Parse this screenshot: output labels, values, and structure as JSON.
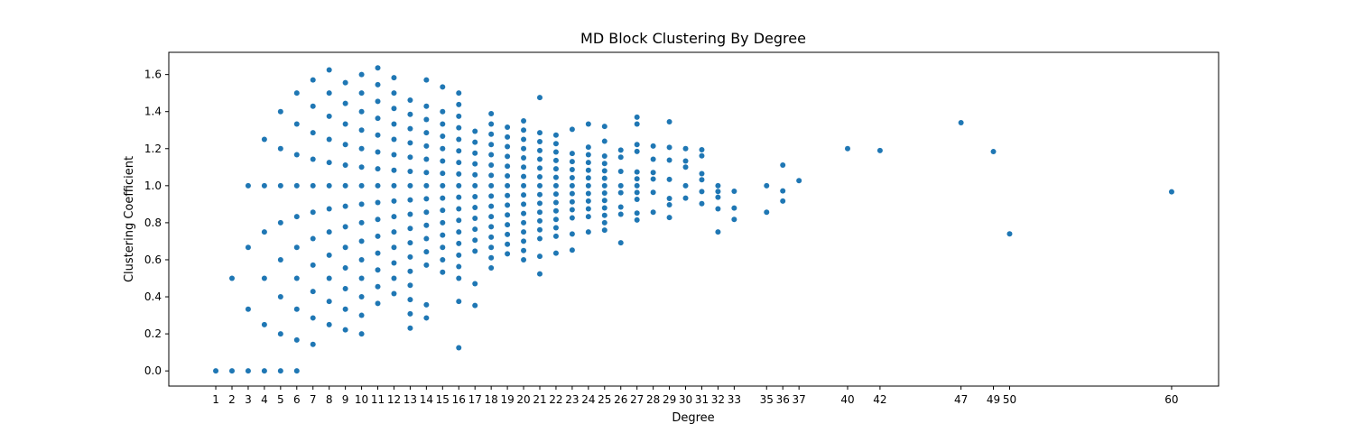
{
  "chart_data": {
    "type": "scatter",
    "title": "MD Block Clustering By Degree",
    "xlabel": "Degree",
    "ylabel": "Clustering Coefficient",
    "xlim": [
      -1.9,
      62.9
    ],
    "ylim": [
      -0.082,
      1.72
    ],
    "x_ticks": [
      1,
      2,
      3,
      4,
      5,
      6,
      7,
      8,
      9,
      10,
      11,
      12,
      13,
      14,
      15,
      16,
      17,
      18,
      19,
      20,
      21,
      22,
      23,
      24,
      25,
      26,
      27,
      28,
      29,
      30,
      31,
      32,
      33,
      35,
      36,
      37,
      40,
      42,
      47,
      49,
      50,
      60
    ],
    "x_tick_labels": [
      "1",
      "2",
      "3",
      "4",
      "5",
      "6",
      "7",
      "8",
      "9",
      "10",
      "11",
      "12",
      "13",
      "14",
      "15",
      "16",
      "17",
      "18",
      "19",
      "20",
      "21",
      "22",
      "23",
      "24",
      "25",
      "26",
      "27",
      "28",
      "29",
      "30",
      "31",
      "32",
      "33",
      "35",
      "36",
      "37",
      "40",
      "42",
      "47",
      "49",
      "50",
      "60"
    ],
    "y_ticks": [
      0.0,
      0.2,
      0.4,
      0.6,
      0.8,
      1.0,
      1.2,
      1.4,
      1.6
    ],
    "y_tick_labels": [
      "0.0",
      "0.2",
      "0.4",
      "0.6",
      "0.8",
      "1.0",
      "1.2",
      "1.4",
      "1.6"
    ],
    "grid": false,
    "legend": "none",
    "colors": {
      "marker": "#1f77b4",
      "axes": "#000000",
      "background": "#ffffff"
    },
    "columns": [
      {
        "x": 1,
        "y": [
          0.0
        ]
      },
      {
        "x": 2,
        "y": [
          0.0,
          0.5
        ]
      },
      {
        "x": 3,
        "y": [
          0.0,
          0.333,
          0.667,
          1.0
        ]
      },
      {
        "x": 4,
        "y": [
          0.0,
          0.25,
          0.5,
          0.75,
          1.0,
          1.25
        ]
      },
      {
        "x": 5,
        "y": [
          0.0,
          0.2,
          0.4,
          0.6,
          0.8,
          1.0,
          1.2,
          1.4
        ]
      },
      {
        "x": 6,
        "y": [
          0.0,
          0.167,
          0.333,
          0.5,
          0.667,
          0.833,
          1.0,
          1.167,
          1.333,
          1.5
        ]
      },
      {
        "x": 7,
        "y": [
          0.143,
          0.286,
          0.429,
          0.571,
          0.714,
          0.857,
          1.0,
          1.143,
          1.286,
          1.429,
          1.571
        ]
      },
      {
        "x": 8,
        "y": [
          0.25,
          0.375,
          0.5,
          0.625,
          0.75,
          0.875,
          1.0,
          1.125,
          1.25,
          1.375,
          1.5,
          1.625
        ]
      },
      {
        "x": 9,
        "y": [
          0.222,
          0.333,
          0.444,
          0.556,
          0.667,
          0.778,
          0.889,
          1.0,
          1.111,
          1.222,
          1.333,
          1.444,
          1.556
        ]
      },
      {
        "x": 10,
        "y": [
          0.2,
          0.3,
          0.4,
          0.5,
          0.6,
          0.7,
          0.8,
          0.9,
          1.0,
          1.1,
          1.2,
          1.3,
          1.4,
          1.5,
          1.6
        ]
      },
      {
        "x": 11,
        "y": [
          0.364,
          0.455,
          0.545,
          0.636,
          0.727,
          0.818,
          0.909,
          1.0,
          1.091,
          1.182,
          1.273,
          1.364,
          1.455,
          1.545,
          1.636
        ]
      },
      {
        "x": 12,
        "y": [
          0.417,
          0.5,
          0.583,
          0.667,
          0.75,
          0.833,
          0.917,
          1.0,
          1.083,
          1.167,
          1.25,
          1.333,
          1.417,
          1.5,
          1.583
        ]
      },
      {
        "x": 13,
        "y": [
          0.231,
          0.308,
          0.385,
          0.462,
          0.538,
          0.615,
          0.692,
          0.769,
          0.846,
          0.923,
          1.0,
          1.077,
          1.154,
          1.231,
          1.308,
          1.385,
          1.462
        ]
      },
      {
        "x": 14,
        "y": [
          0.286,
          0.357,
          0.571,
          0.643,
          0.714,
          0.786,
          0.857,
          0.929,
          1.0,
          1.071,
          1.143,
          1.214,
          1.286,
          1.357,
          1.429,
          1.571
        ]
      },
      {
        "x": 15,
        "y": [
          0.533,
          0.6,
          0.667,
          0.733,
          0.8,
          0.867,
          0.933,
          1.0,
          1.067,
          1.133,
          1.2,
          1.267,
          1.333,
          1.4,
          1.533
        ]
      },
      {
        "x": 16,
        "y": [
          0.125,
          0.375,
          0.5,
          0.563,
          0.625,
          0.688,
          0.75,
          0.813,
          0.875,
          0.938,
          1.0,
          1.063,
          1.125,
          1.188,
          1.25,
          1.313,
          1.375,
          1.438,
          1.5
        ]
      },
      {
        "x": 17,
        "y": [
          0.353,
          0.471,
          0.647,
          0.706,
          0.765,
          0.824,
          0.882,
          0.941,
          1.0,
          1.059,
          1.118,
          1.176,
          1.235,
          1.294
        ]
      },
      {
        "x": 18,
        "y": [
          0.556,
          0.611,
          0.667,
          0.722,
          0.778,
          0.833,
          0.889,
          0.944,
          1.0,
          1.056,
          1.111,
          1.167,
          1.222,
          1.278,
          1.333,
          1.389
        ]
      },
      {
        "x": 19,
        "y": [
          0.632,
          0.684,
          0.737,
          0.789,
          0.842,
          0.895,
          0.947,
          1.0,
          1.053,
          1.105,
          1.158,
          1.211,
          1.263,
          1.316
        ]
      },
      {
        "x": 20,
        "y": [
          0.6,
          0.65,
          0.7,
          0.75,
          0.8,
          0.85,
          0.9,
          0.95,
          1.0,
          1.05,
          1.1,
          1.15,
          1.2,
          1.25,
          1.3,
          1.35
        ]
      },
      {
        "x": 21,
        "y": [
          0.524,
          0.619,
          0.714,
          0.762,
          0.81,
          0.857,
          0.905,
          0.952,
          1.0,
          1.048,
          1.095,
          1.143,
          1.19,
          1.238,
          1.286,
          1.476
        ]
      },
      {
        "x": 22,
        "y": [
          0.636,
          0.727,
          0.773,
          0.818,
          0.864,
          0.909,
          0.955,
          1.0,
          1.045,
          1.091,
          1.136,
          1.182,
          1.227,
          1.273
        ]
      },
      {
        "x": 23,
        "y": [
          0.652,
          0.739,
          0.826,
          0.87,
          0.913,
          0.957,
          1.0,
          1.043,
          1.087,
          1.13,
          1.174,
          1.304
        ]
      },
      {
        "x": 24,
        "y": [
          0.75,
          0.833,
          0.875,
          0.917,
          0.958,
          1.0,
          1.042,
          1.083,
          1.125,
          1.167,
          1.208,
          1.333
        ]
      },
      {
        "x": 25,
        "y": [
          0.76,
          0.8,
          0.84,
          0.88,
          0.92,
          0.96,
          1.0,
          1.04,
          1.08,
          1.12,
          1.16,
          1.24,
          1.32
        ]
      },
      {
        "x": 26,
        "y": [
          0.692,
          0.846,
          0.885,
          0.962,
          1.0,
          1.077,
          1.154,
          1.192
        ]
      },
      {
        "x": 27,
        "y": [
          0.815,
          0.852,
          0.926,
          0.963,
          1.0,
          1.037,
          1.074,
          1.185,
          1.222,
          1.333,
          1.37
        ]
      },
      {
        "x": 28,
        "y": [
          0.857,
          0.964,
          1.036,
          1.071,
          1.143,
          1.214
        ]
      },
      {
        "x": 29,
        "y": [
          0.828,
          0.897,
          0.931,
          1.034,
          1.138,
          1.207,
          1.345
        ]
      },
      {
        "x": 30,
        "y": [
          0.933,
          1.0,
          1.1,
          1.133,
          1.2
        ]
      },
      {
        "x": 31,
        "y": [
          0.903,
          0.968,
          1.032,
          1.065,
          1.161,
          1.194
        ]
      },
      {
        "x": 32,
        "y": [
          0.75,
          0.875,
          0.938,
          0.969,
          1.0
        ]
      },
      {
        "x": 33,
        "y": [
          0.818,
          0.879,
          0.97
        ]
      },
      {
        "x": 35,
        "y": [
          0.857,
          1.0
        ]
      },
      {
        "x": 36,
        "y": [
          0.917,
          0.972,
          1.111
        ]
      },
      {
        "x": 37,
        "y": [
          1.027
        ]
      },
      {
        "x": 40,
        "y": [
          1.2
        ]
      },
      {
        "x": 42,
        "y": [
          1.19
        ]
      },
      {
        "x": 47,
        "y": [
          1.34
        ]
      },
      {
        "x": 49,
        "y": [
          1.184
        ]
      },
      {
        "x": 50,
        "y": [
          0.74
        ]
      },
      {
        "x": 60,
        "y": [
          0.967
        ]
      }
    ]
  }
}
